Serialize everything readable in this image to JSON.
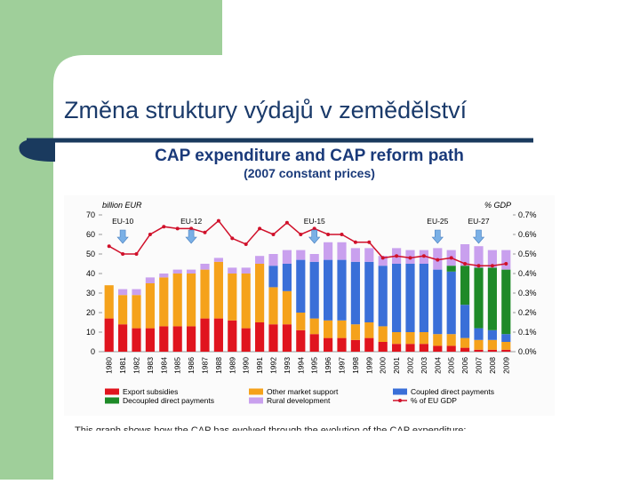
{
  "slide_title": "Změna struktury výdajů v zemědělství",
  "chart_data": {
    "type": "stacked-bar-line",
    "title": "CAP expenditure and CAP reform path",
    "subtitle": "(2007 constant prices)",
    "y_label": "billion EUR",
    "y2_label": "% GDP",
    "categories": [
      "1980",
      "1981",
      "1982",
      "1983",
      "1984",
      "1985",
      "1986",
      "1987",
      "1988",
      "1989",
      "1990",
      "1991",
      "1992",
      "1993",
      "1994",
      "1995",
      "1996",
      "1997",
      "1998",
      "1999",
      "2000",
      "2001",
      "2002",
      "2003",
      "2004",
      "2005",
      "2006",
      "2007",
      "2008",
      "2009"
    ],
    "series": [
      {
        "name": "Export subsidies",
        "color": "#e0141e",
        "values": [
          17,
          14,
          12,
          12,
          13,
          13,
          13,
          17,
          17,
          16,
          12,
          15,
          14,
          14,
          11,
          9,
          7,
          7,
          6,
          7,
          5,
          4,
          4,
          4,
          3,
          3,
          2,
          1,
          1,
          1
        ]
      },
      {
        "name": "Other market support",
        "color": "#f5a21b",
        "values": [
          17,
          15,
          17,
          23,
          25,
          27,
          27,
          25,
          29,
          24,
          28,
          30,
          19,
          17,
          9,
          8,
          9,
          9,
          8,
          8,
          8,
          6,
          6,
          6,
          6,
          6,
          5,
          5,
          5,
          4
        ]
      },
      {
        "name": "Coupled direct payments",
        "color": "#3a6fd8",
        "values": [
          0,
          0,
          0,
          0,
          0,
          0,
          0,
          0,
          0,
          0,
          0,
          0,
          11,
          14,
          27,
          29,
          31,
          31,
          32,
          31,
          31,
          35,
          35,
          35,
          33,
          32,
          17,
          6,
          5,
          4
        ]
      },
      {
        "name": "Decoupled direct payments",
        "color": "#1e8a28",
        "values": [
          0,
          0,
          0,
          0,
          0,
          0,
          0,
          0,
          0,
          0,
          0,
          0,
          0,
          0,
          0,
          0,
          0,
          0,
          0,
          0,
          0,
          0,
          0,
          0,
          0,
          3,
          20,
          31,
          32,
          33
        ]
      },
      {
        "name": "Rural development",
        "color": "#c9a0ee",
        "values": [
          0,
          3,
          3,
          3,
          2,
          2,
          2,
          3,
          2,
          3,
          3,
          4,
          6,
          7,
          5,
          4,
          9,
          9,
          7,
          7,
          5,
          8,
          7,
          7,
          11,
          8,
          11,
          11,
          9,
          10
        ]
      },
      {
        "name": "% of EU GDP",
        "color": "#d0102a",
        "axis": "y2",
        "values": [
          0.54,
          0.5,
          0.5,
          0.6,
          0.64,
          0.63,
          0.63,
          0.61,
          0.67,
          0.58,
          0.55,
          0.63,
          0.6,
          0.66,
          0.6,
          0.63,
          0.6,
          0.6,
          0.56,
          0.56,
          0.48,
          0.49,
          0.48,
          0.49,
          0.47,
          0.48,
          0.45,
          0.44,
          0.44,
          0.45
        ]
      }
    ],
    "ylim": [
      0,
      70
    ],
    "yticks": [
      0,
      10,
      20,
      30,
      40,
      50,
      60,
      70
    ],
    "y2lim": [
      0,
      0.7
    ],
    "y2ticks": [
      {
        "value": 0,
        "label": "0.0%"
      },
      {
        "value": 0.1,
        "label": "0.1%"
      },
      {
        "value": 0.2,
        "label": "0.2%"
      },
      {
        "value": 0.3,
        "label": "0.3%"
      },
      {
        "value": 0.4,
        "label": "0.4%"
      },
      {
        "value": 0.5,
        "label": "0.5%"
      },
      {
        "value": 0.6,
        "label": "0.6%"
      },
      {
        "value": 0.7,
        "label": "0.7%"
      }
    ],
    "annotations": [
      {
        "text": "EU-10",
        "category": "1981"
      },
      {
        "text": "EU-12",
        "category": "1986"
      },
      {
        "text": "EU-15",
        "category": "1995"
      },
      {
        "text": "EU-25",
        "category": "2004"
      },
      {
        "text": "EU-27",
        "category": "2007"
      }
    ],
    "note": "This graph shows how the CAP has evolved through the evolution of the CAP expenditure:"
  }
}
